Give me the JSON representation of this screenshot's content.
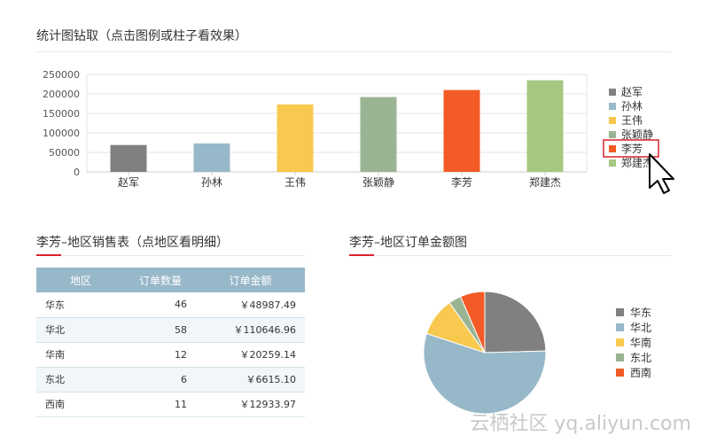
{
  "header": {
    "title": "统计图钻取（点击图例或柱子看效果）"
  },
  "sales_table": {
    "title": "李芳–地区销售表（点地区看明细）",
    "columns": [
      "地区",
      "订单数量",
      "订单金额"
    ],
    "rows": [
      {
        "region": "华东",
        "count": "46",
        "amount": "￥48987.49"
      },
      {
        "region": "华北",
        "count": "58",
        "amount": "￥110646.96"
      },
      {
        "region": "华南",
        "count": "12",
        "amount": "￥20259.14"
      },
      {
        "region": "东北",
        "count": "6",
        "amount": "￥6615.10"
      },
      {
        "region": "西南",
        "count": "11",
        "amount": "￥12933.97"
      }
    ]
  },
  "pie_title": "李芳–地区订单金额图",
  "watermark": "云栖社区 yq.aliyun.com",
  "chart_data": [
    {
      "type": "bar",
      "title": "统计图钻取（点击图例或柱子看效果）",
      "categories": [
        "赵军",
        "孙林",
        "王伟",
        "张颖静",
        "李芳",
        "郑建杰"
      ],
      "values": [
        69000,
        73000,
        173000,
        192000,
        210000,
        235000
      ],
      "colors": [
        "#808080",
        "#97b8c8",
        "#f8c84f",
        "#9ab493",
        "#f25b26",
        "#a6c882"
      ],
      "ylim": [
        0,
        250000
      ],
      "yticks": [
        "0",
        "50000",
        "100000",
        "150000",
        "200000",
        "250000"
      ],
      "legend": [
        "赵军",
        "孙林",
        "王伟",
        "张颖静",
        "李芳",
        "郑建杰"
      ],
      "legend_position": "right",
      "highlighted_legend": "李芳",
      "grid": true
    },
    {
      "type": "pie",
      "title": "李芳–地区订单金额图",
      "labels": [
        "华东",
        "华北",
        "华南",
        "东北",
        "西南"
      ],
      "values": [
        48987.49,
        110646.96,
        20259.14,
        6615.1,
        12933.97
      ],
      "colors": [
        "#808080",
        "#97b8c8",
        "#f8c84f",
        "#9ab493",
        "#f25b26"
      ],
      "legend_position": "right"
    }
  ]
}
